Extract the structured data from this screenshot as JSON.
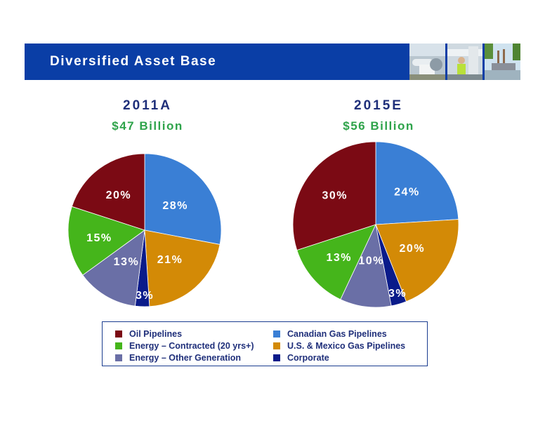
{
  "header": {
    "title": "Diversified Asset Base"
  },
  "colors": {
    "banner": "#0a3ea6",
    "Oil Pipelines": "#7b0a14",
    "Canadian Gas Pipelines": "#3a7fd5",
    "Energy – Contracted (20 yrs+)": "#45b51b",
    "U.S. & Mexico Gas Pipelines": "#d38a06",
    "Energy – Other Generation": "#6a6fa6",
    "Corporate": "#0a1b8a"
  },
  "legend": {
    "items": [
      "Oil Pipelines",
      "Canadian Gas Pipelines",
      "Energy – Contracted (20 yrs+)",
      "U.S. & Mexico Gas Pipelines",
      "Energy – Other Generation",
      "Corporate"
    ]
  },
  "photos": [
    "pipeline-photo",
    "worker-photo",
    "power-plant-photo"
  ],
  "chart_data": [
    {
      "type": "pie",
      "title": "2011A",
      "subtitle": "$47 Billion",
      "slices": [
        {
          "label": "Canadian Gas Pipelines",
          "value": 28,
          "text": "28%"
        },
        {
          "label": "U.S. & Mexico Gas Pipelines",
          "value": 21,
          "text": "21%"
        },
        {
          "label": "Corporate",
          "value": 3,
          "text": "3%"
        },
        {
          "label": "Energy – Other Generation",
          "value": 13,
          "text": "13%"
        },
        {
          "label": "Energy – Contracted (20 yrs+)",
          "value": 15,
          "text": "15%"
        },
        {
          "label": "Oil Pipelines",
          "value": 20,
          "text": "20%"
        }
      ],
      "legend_position": "bottom"
    },
    {
      "type": "pie",
      "title": "2015E",
      "subtitle": "$56 Billion",
      "slices": [
        {
          "label": "Canadian Gas Pipelines",
          "value": 24,
          "text": "24%"
        },
        {
          "label": "U.S. & Mexico Gas Pipelines",
          "value": 20,
          "text": "20%"
        },
        {
          "label": "Corporate",
          "value": 3,
          "text": "3%"
        },
        {
          "label": "Energy – Other Generation",
          "value": 10,
          "text": "10%"
        },
        {
          "label": "Energy – Contracted (20 yrs+)",
          "value": 13,
          "text": "13%"
        },
        {
          "label": "Oil Pipelines",
          "value": 30,
          "text": "30%"
        }
      ],
      "legend_position": "bottom"
    }
  ]
}
